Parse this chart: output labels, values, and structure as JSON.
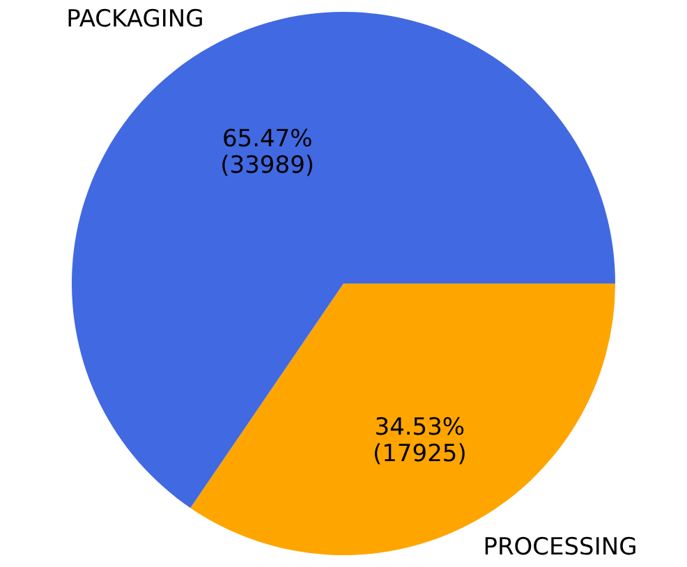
{
  "chart_data": {
    "type": "pie",
    "categories": [
      "PACKAGING",
      "PROCESSING"
    ],
    "values": [
      33989,
      17925
    ],
    "colors": [
      "#4169e1",
      "#ffa500"
    ],
    "value_labels": [
      "65.47%\n (33989)",
      "34.53%\n (17925)"
    ],
    "legend": false
  }
}
